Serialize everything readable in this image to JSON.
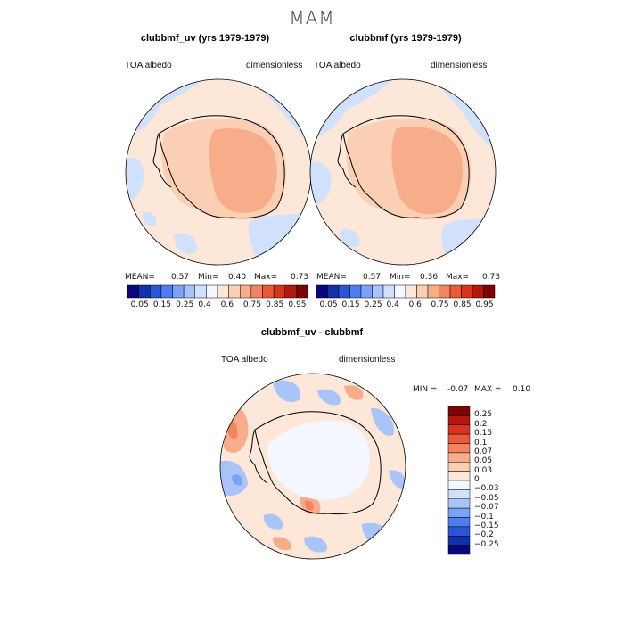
{
  "figure": {
    "season": "MAM"
  },
  "panels": [
    {
      "title": "clubbmf_uv (yrs 1979-1979)",
      "variable": "TOA albedo",
      "units": "dimensionless",
      "stats": {
        "mean_label": "MEAN=",
        "mean": "0.57",
        "min_label": "Min=",
        "min": "0.40",
        "max_label": "Max=",
        "max": "0.73"
      }
    },
    {
      "title": "clubbmf (yrs 1979-1979)",
      "variable": "TOA albedo",
      "units": "dimensionless",
      "stats": {
        "mean_label": "MEAN=",
        "mean": "0.57",
        "min_label": "Min=",
        "min": "0.36",
        "max_label": "Max=",
        "max": "0.73"
      }
    },
    {
      "title": "clubbmf_uv - clubbmf",
      "variable": "TOA albedo",
      "units": "dimensionless",
      "stats": {
        "min_label": "MIN =",
        "min": "-0.07",
        "max_label": "MAX =",
        "max": "0.10"
      }
    }
  ],
  "abs_colorbar": {
    "labels": [
      "0.05",
      "0.15",
      "0.25",
      "0.4",
      "0.6",
      "0.75",
      "0.85",
      "0.95"
    ],
    "colors": [
      "#08087a",
      "#1230a8",
      "#2a55d6",
      "#4f7cf0",
      "#7ca2f5",
      "#a9c4f8",
      "#d2e1fb",
      "#f4f7ff",
      "#fde7d9",
      "#fbcfb4",
      "#f8ad8a",
      "#f4845f",
      "#ea5a37",
      "#d8341b",
      "#b4170c",
      "#7e0404"
    ]
  },
  "diff_colorbar": {
    "labels": [
      "0.25",
      "0.2",
      "0.15",
      "0.1",
      "0.07",
      "0.05",
      "0.03",
      "0",
      "−0.03",
      "−0.05",
      "−0.07",
      "−0.1",
      "−0.15",
      "−0.2",
      "−0.25"
    ],
    "colors": [
      "#7e0404",
      "#b4170c",
      "#d8341b",
      "#ea5a37",
      "#f4845f",
      "#f8ad8a",
      "#fbcfb4",
      "#fde7d9",
      "#f4f7ff",
      "#d2e1fb",
      "#a9c4f8",
      "#7ca2f5",
      "#4f7cf0",
      "#2a55d6",
      "#1230a8",
      "#08087a"
    ]
  },
  "map_colors": {
    "ocean_light": "#fde7d9",
    "ocean_blue": "#d2e1fb",
    "land_mid": "#fbcfb4",
    "land_high": "#f8ad8a",
    "diff_pos": "#f8ad8a",
    "diff_strong": "#f4845f",
    "diff_neg": "#a9c4f8",
    "diff_neg_strong": "#7ca2f5"
  }
}
